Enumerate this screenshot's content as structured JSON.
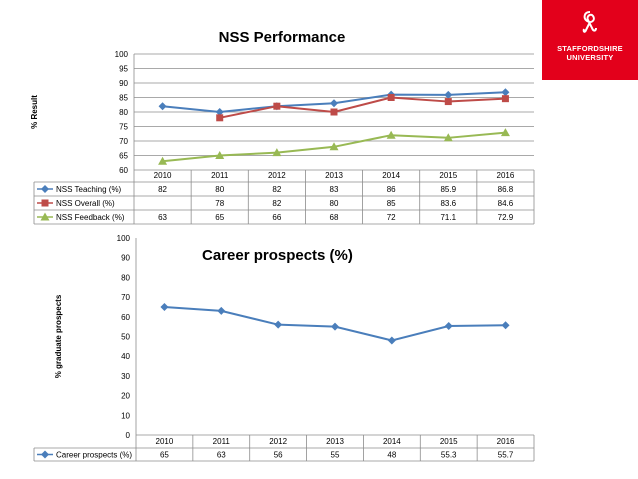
{
  "logo": {
    "line1": "STAFFORDSHIRE",
    "line2": "UNIVERSITY",
    "color": "#e3001b"
  },
  "chart_data": [
    {
      "type": "line",
      "title": "NSS Performance",
      "xlabel": "",
      "ylabel": "% Result",
      "ylim": [
        60,
        100
      ],
      "yticks": [
        60,
        65,
        70,
        75,
        80,
        85,
        90,
        95,
        100
      ],
      "grid": true,
      "categories": [
        "2010",
        "2011",
        "2012",
        "2013",
        "2014",
        "2015",
        "2016"
      ],
      "series": [
        {
          "name": "NSS Teaching (%)",
          "color": "#4a7ebb",
          "marker": "diamond",
          "values": [
            82,
            80,
            82,
            83,
            86,
            85.9,
            86.8
          ],
          "labels": [
            "82",
            "80",
            "82",
            "83",
            "86",
            "85.9",
            "86.8"
          ]
        },
        {
          "name": "NSS Overall (%)",
          "color": "#be4b48",
          "marker": "square",
          "values": [
            null,
            78,
            82,
            80,
            85,
            83.6,
            84.6
          ],
          "labels": [
            "",
            "78",
            "82",
            "80",
            "85",
            "83.6",
            "84.6"
          ]
        },
        {
          "name": "NSS Feedback (%)",
          "color": "#98b954",
          "marker": "triangle",
          "values": [
            63,
            65,
            66,
            68,
            72,
            71.1,
            72.9
          ],
          "labels": [
            "63",
            "65",
            "66",
            "68",
            "72",
            "71.1",
            "72.9"
          ]
        }
      ],
      "legend": "data-table"
    },
    {
      "type": "line",
      "title": "Career prospects (%)",
      "xlabel": "",
      "ylabel": "% graduate prospects",
      "ylim": [
        0,
        100
      ],
      "yticks": [
        0,
        10,
        20,
        30,
        40,
        50,
        60,
        70,
        80,
        90,
        100
      ],
      "grid": false,
      "categories": [
        "2010",
        "2011",
        "2012",
        "2013",
        "2014",
        "2015",
        "2016"
      ],
      "series": [
        {
          "name": "Career prospects (%)",
          "color": "#4a7ebb",
          "marker": "diamond",
          "values": [
            65,
            63,
            56,
            55,
            48,
            55.3,
            55.7
          ],
          "labels": [
            "65",
            "63",
            "56",
            "55",
            "48",
            "55.3",
            "55.7"
          ]
        }
      ],
      "legend": "data-table"
    }
  ]
}
